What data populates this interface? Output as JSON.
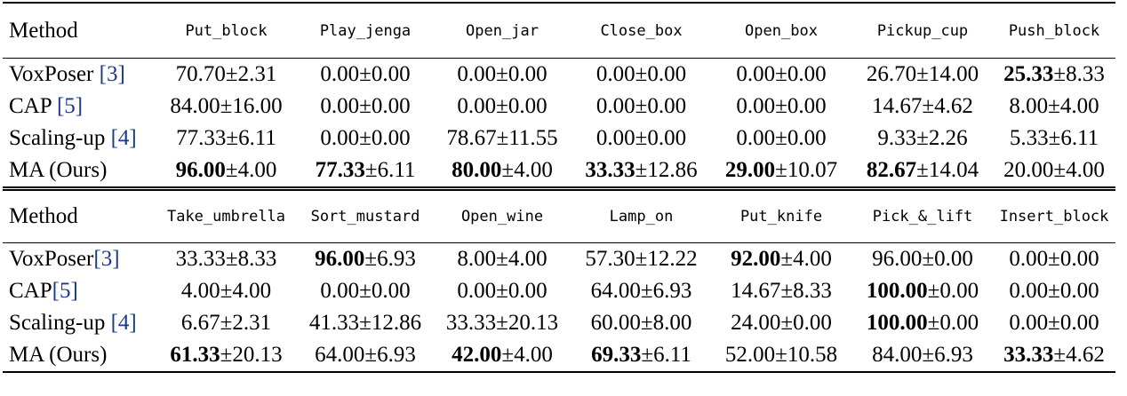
{
  "sections": [
    {
      "header": {
        "method_label": "Method",
        "tasks": [
          "Put_block",
          "Play_jenga",
          "Open_jar",
          "Close_box",
          "Open_box",
          "Pickup_cup",
          "Push_block"
        ]
      },
      "rows": [
        {
          "name": "VoxPoser ",
          "cite": "[3]",
          "cells": [
            {
              "bold": "",
              "rest": "70.70±2.31"
            },
            {
              "bold": "",
              "rest": "0.00±0.00"
            },
            {
              "bold": "",
              "rest": "0.00±0.00"
            },
            {
              "bold": "",
              "rest": "0.00±0.00"
            },
            {
              "bold": "",
              "rest": "0.00±0.00"
            },
            {
              "bold": "",
              "rest": "26.70±14.00"
            },
            {
              "bold": "25.33",
              "rest": "±8.33"
            }
          ]
        },
        {
          "name": "CAP ",
          "cite": "[5]",
          "cells": [
            {
              "bold": "",
              "rest": "84.00±16.00"
            },
            {
              "bold": "",
              "rest": "0.00±0.00"
            },
            {
              "bold": "",
              "rest": "0.00±0.00"
            },
            {
              "bold": "",
              "rest": "0.00±0.00"
            },
            {
              "bold": "",
              "rest": "0.00±0.00"
            },
            {
              "bold": "",
              "rest": "14.67±4.62"
            },
            {
              "bold": "",
              "rest": "8.00±4.00"
            }
          ]
        },
        {
          "name": "Scaling-up ",
          "cite": "[4]",
          "cells": [
            {
              "bold": "",
              "rest": "77.33±6.11"
            },
            {
              "bold": "",
              "rest": "0.00±0.00"
            },
            {
              "bold": "",
              "rest": "78.67±11.55"
            },
            {
              "bold": "",
              "rest": "0.00±0.00"
            },
            {
              "bold": "",
              "rest": "0.00±0.00"
            },
            {
              "bold": "",
              "rest": "9.33±2.26"
            },
            {
              "bold": "",
              "rest": "5.33±6.11"
            }
          ]
        },
        {
          "name": "MA (Ours)",
          "cite": "",
          "cells": [
            {
              "bold": "96.00",
              "rest": "±4.00"
            },
            {
              "bold": "77.33",
              "rest": "±6.11"
            },
            {
              "bold": "80.00",
              "rest": "±4.00"
            },
            {
              "bold": "33.33",
              "rest": "±12.86"
            },
            {
              "bold": "29.00",
              "rest": "±10.07"
            },
            {
              "bold": "82.67",
              "rest": "±14.04"
            },
            {
              "bold": "",
              "rest": "20.00±4.00"
            }
          ]
        }
      ]
    },
    {
      "header": {
        "method_label": "Method",
        "tasks": [
          "Take_umbrella",
          "Sort_mustard",
          "Open_wine",
          "Lamp_on",
          "Put_knife",
          "Pick_&_lift",
          "Insert_block"
        ]
      },
      "rows": [
        {
          "name": "VoxPoser",
          "cite": "[3]",
          "cells": [
            {
              "bold": "",
              "rest": "33.33±8.33"
            },
            {
              "bold": "96.00",
              "rest": "±6.93"
            },
            {
              "bold": "",
              "rest": "8.00±4.00"
            },
            {
              "bold": "",
              "rest": "57.30±12.22"
            },
            {
              "bold": "92.00",
              "rest": "±4.00"
            },
            {
              "bold": "",
              "rest": "96.00±0.00"
            },
            {
              "bold": "",
              "rest": "0.00±0.00"
            }
          ]
        },
        {
          "name": "CAP",
          "cite": "[5]",
          "cells": [
            {
              "bold": "",
              "rest": "4.00±4.00"
            },
            {
              "bold": "",
              "rest": "0.00±0.00"
            },
            {
              "bold": "",
              "rest": "0.00±0.00"
            },
            {
              "bold": "",
              "rest": "64.00±6.93"
            },
            {
              "bold": "",
              "rest": "14.67±8.33"
            },
            {
              "bold": "100.00",
              "rest": "±0.00"
            },
            {
              "bold": "",
              "rest": "0.00±0.00"
            }
          ]
        },
        {
          "name": "Scaling-up ",
          "cite": "[4]",
          "cells": [
            {
              "bold": "",
              "rest": "6.67±2.31"
            },
            {
              "bold": "",
              "rest": "41.33±12.86"
            },
            {
              "bold": "",
              "rest": "33.33±20.13"
            },
            {
              "bold": "",
              "rest": "60.00±8.00"
            },
            {
              "bold": "",
              "rest": "24.00±0.00"
            },
            {
              "bold": "100.00",
              "rest": "±0.00"
            },
            {
              "bold": "",
              "rest": "0.00±0.00"
            }
          ]
        },
        {
          "name": "MA (Ours)",
          "cite": "",
          "cells": [
            {
              "bold": "61.33",
              "rest": "±20.13"
            },
            {
              "bold": "",
              "rest": "64.00±6.93"
            },
            {
              "bold": "42.00",
              "rest": "±4.00"
            },
            {
              "bold": "69.33",
              "rest": "±6.11"
            },
            {
              "bold": "",
              "rest": "52.00±10.58"
            },
            {
              "bold": "",
              "rest": "84.00±6.93"
            },
            {
              "bold": "33.33",
              "rest": "±4.62"
            }
          ]
        }
      ]
    }
  ]
}
